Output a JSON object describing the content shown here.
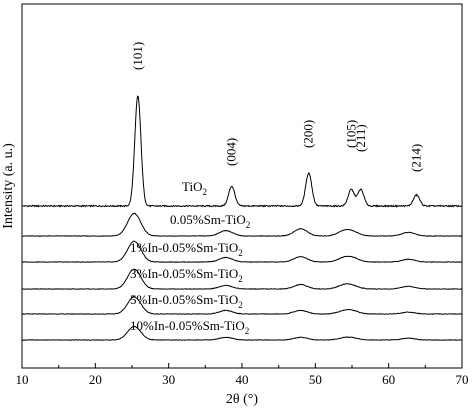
{
  "chart_data": {
    "type": "line",
    "xlabel": "2θ (°)",
    "ylabel": "Intensity (a. u.)",
    "xlim": [
      10,
      70
    ],
    "x_ticks": [
      10,
      20,
      30,
      40,
      50,
      60,
      70
    ],
    "grid": false,
    "legend": "none",
    "peaks_2theta": [
      25.3,
      37.8,
      48.0,
      53.9,
      55.1,
      62.7
    ],
    "series": [
      {
        "name": "TiO₂",
        "label_parts": [
          "TiO",
          "2",
          ""
        ],
        "peak_heights": [
          100,
          18,
          30,
          15,
          15,
          10
        ],
        "peak_positions": [
          25.8,
          38.6,
          49.1,
          54.9,
          56.2,
          63.8
        ],
        "baseline": 0
      },
      {
        "name": "0.05%Sm-TiO₂",
        "label_parts": [
          "0.05%Sm-TiO",
          "2",
          ""
        ],
        "peak_heights": [
          25,
          6,
          8,
          5,
          4,
          4
        ],
        "baseline": 0
      },
      {
        "name": "1%In-0.05%Sm-TiO₂",
        "label_parts": [
          "1%In-0.05%Sm-TiO",
          "2",
          ""
        ],
        "peak_heights": [
          23,
          5,
          6,
          4,
          4,
          3
        ],
        "baseline": 0
      },
      {
        "name": "3%In-0.05%Sm-TiO₂",
        "label_parts": [
          "3%In-0.05%Sm-TiO",
          "2",
          ""
        ],
        "peak_heights": [
          22,
          4,
          5,
          4,
          3,
          3
        ],
        "baseline": 0
      },
      {
        "name": "5%In-0.05%Sm-TiO₂",
        "label_parts": [
          "5%In-0.05%Sm-TiO",
          "2",
          ""
        ],
        "peak_heights": [
          19,
          4,
          4,
          3,
          3,
          2
        ],
        "baseline": 0
      },
      {
        "name": "10%In-0.05%Sm-TiO₂",
        "label_parts": [
          "10%In-0.05%Sm-TiO",
          "2",
          ""
        ],
        "peak_heights": [
          15,
          3,
          3,
          2,
          2,
          2
        ],
        "baseline": 0
      }
    ],
    "peak_annotations": [
      {
        "text": "(101)",
        "x": 25.8
      },
      {
        "text": "(004)",
        "x": 38.6
      },
      {
        "text": "(200)",
        "x": 49.1
      },
      {
        "text": "(105)",
        "x": 54.9
      },
      {
        "text": "(211)",
        "x": 56.2
      },
      {
        "text": "(214)",
        "x": 63.8
      }
    ]
  }
}
